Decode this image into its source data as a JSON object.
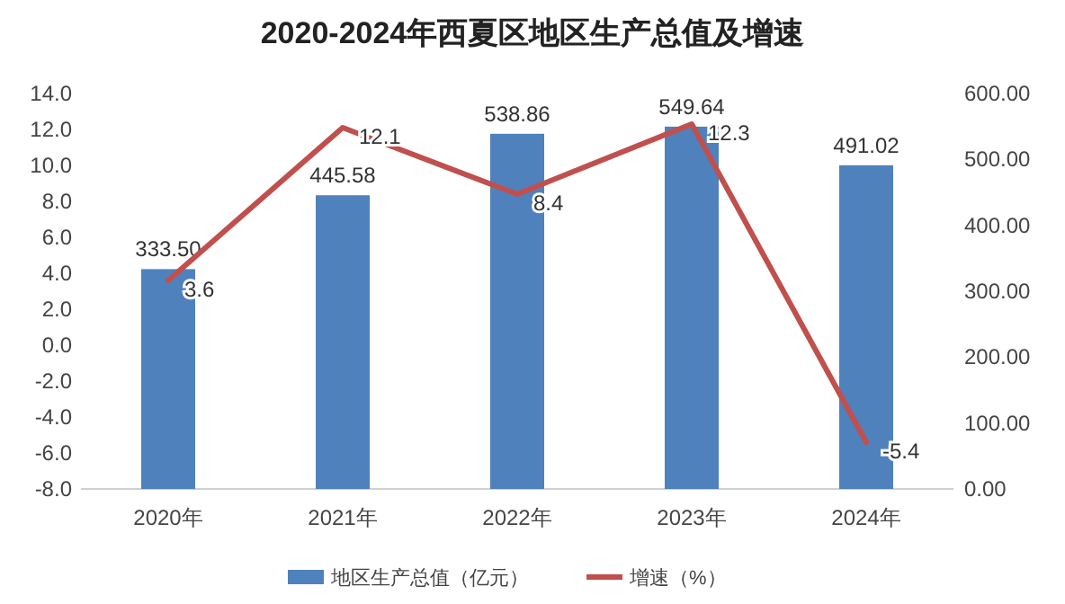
{
  "chart_data": {
    "type": "bar",
    "title": "2020-2024年西夏区地区生产总值及增速",
    "categories": [
      "2020年",
      "2021年",
      "2022年",
      "2023年",
      "2024年"
    ],
    "series": [
      {
        "name": "地区生产总值（亿元）",
        "axis": "y2",
        "color": "#4f81bd",
        "values": [
          333.5,
          445.58,
          538.86,
          549.64,
          491.02
        ],
        "value_labels": [
          "333.50",
          "445.58",
          "538.86",
          "549.64",
          "491.02"
        ]
      },
      {
        "name": "增速（%）",
        "type": "line",
        "axis": "y",
        "color": "#c0504d",
        "values": [
          3.6,
          12.1,
          8.4,
          12.3,
          -5.4
        ],
        "value_labels": [
          "3.6",
          "12.1",
          "8.4",
          "12.3",
          "-5.4"
        ]
      }
    ],
    "ylim": [
      -8,
      14
    ],
    "yticks": [
      {
        "value": -8,
        "label": "-8.0"
      },
      {
        "value": -6,
        "label": "-6.0"
      },
      {
        "value": -4,
        "label": "-4.0"
      },
      {
        "value": -2,
        "label": "-2.0"
      },
      {
        "value": 0,
        "label": "0.0"
      },
      {
        "value": 2,
        "label": "2.0"
      },
      {
        "value": 4,
        "label": "4.0"
      },
      {
        "value": 6,
        "label": "6.0"
      },
      {
        "value": 8,
        "label": "8.0"
      },
      {
        "value": 10,
        "label": "10.0"
      },
      {
        "value": 12,
        "label": "12.0"
      },
      {
        "value": 14,
        "label": "14.0"
      }
    ],
    "y2lim": [
      0,
      600
    ],
    "y2ticks": [
      {
        "value": 0,
        "label": "0.00"
      },
      {
        "value": 100,
        "label": "100.00"
      },
      {
        "value": 200,
        "label": "200.00"
      },
      {
        "value": 300,
        "label": "300.00"
      },
      {
        "value": 400,
        "label": "400.00"
      },
      {
        "value": 500,
        "label": "500.00"
      },
      {
        "value": 600,
        "label": "600.00"
      }
    ],
    "legend": "bottom"
  }
}
